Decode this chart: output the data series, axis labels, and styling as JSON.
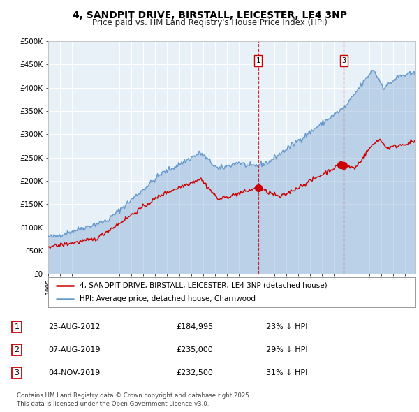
{
  "title": "4, SANDPIT DRIVE, BIRSTALL, LEICESTER, LE4 3NP",
  "subtitle": "Price paid vs. HM Land Registry's House Price Index (HPI)",
  "legend_property": "4, SANDPIT DRIVE, BIRSTALL, LEICESTER, LE4 3NP (detached house)",
  "legend_hpi": "HPI: Average price, detached house, Charnwood",
  "property_color": "#cc0000",
  "hpi_color": "#6699cc",
  "background_color": "#e8f0f8",
  "sale_markers": [
    {
      "label": "1",
      "date": "23-AUG-2012",
      "price": 184995,
      "pct": "23% ↓ HPI"
    },
    {
      "label": "2",
      "date": "07-AUG-2019",
      "price": 235000,
      "pct": "29% ↓ HPI"
    },
    {
      "label": "3",
      "date": "04-NOV-2019",
      "price": 232500,
      "pct": "31% ↓ HPI"
    }
  ],
  "vline_sale_indices": [
    0,
    2
  ],
  "copyright_text": "Contains HM Land Registry data © Crown copyright and database right 2025.\nThis data is licensed under the Open Government Licence v3.0.",
  "ylim": [
    0,
    500000
  ],
  "yticks": [
    0,
    50000,
    100000,
    150000,
    200000,
    250000,
    300000,
    350000,
    400000,
    450000,
    500000
  ],
  "xlim_start": 1995.0,
  "xlim_end": 2025.8,
  "x_start_year": 1995,
  "x_end_year": 2025
}
